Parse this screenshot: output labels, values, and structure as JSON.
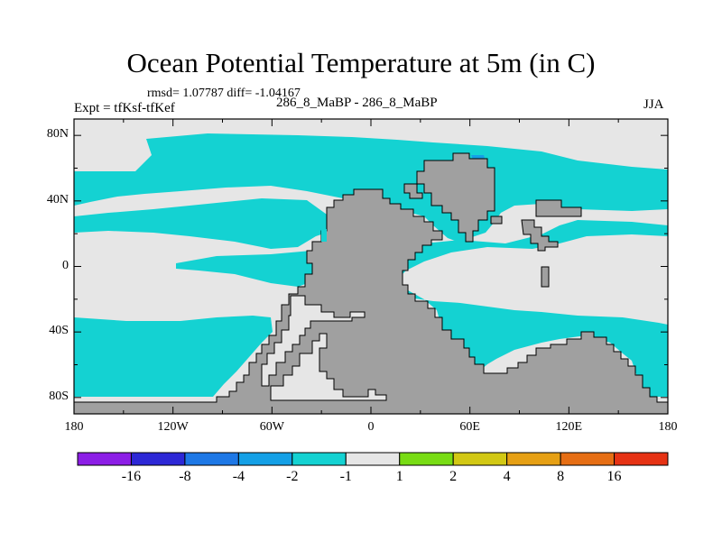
{
  "title": "Ocean Potential Temperature at 5m (in C)",
  "stats": "rmsd= 1.07787 diff= -1.04167",
  "expt": "Expt = tfKsf-tfKef",
  "case_label": "286_8_MaBP - 286_8_MaBP",
  "season": "JJA",
  "x_ticks": [
    "180",
    "120W",
    "60W",
    "0",
    "60E",
    "120E",
    "180"
  ],
  "y_ticks": [
    "80N",
    "40N",
    "0",
    "40S",
    "80S"
  ],
  "colorbar": {
    "colors": [
      "#8c1ee6",
      "#2d28d6",
      "#1e78e6",
      "#14a0e6",
      "#14d2d2",
      "#e6e6e6",
      "#78dc14",
      "#d2c814",
      "#e6a014",
      "#e66e14",
      "#e63214"
    ],
    "labels": [
      "-16",
      "-8",
      "-4",
      "-2",
      "-1",
      "1",
      "2",
      "4",
      "8",
      "16"
    ]
  },
  "colors": {
    "land": "#a0a0a0",
    "neutral": "#e6e6e6",
    "cool": "#14d2d2",
    "cooler": "#14a0e6"
  }
}
